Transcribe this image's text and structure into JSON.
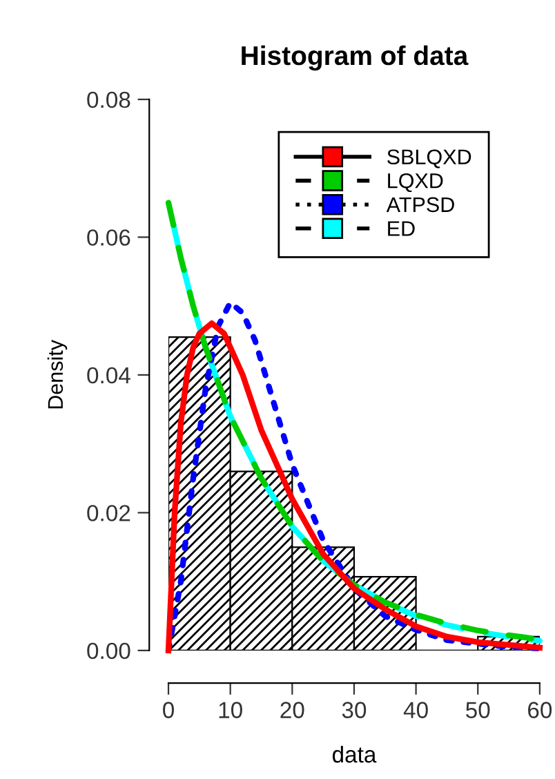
{
  "chart_data": {
    "type": "histogram",
    "title": "Histogram of data",
    "xlabel": "data",
    "ylabel": "Density",
    "bins": [
      0,
      10,
      20,
      30,
      40,
      50,
      60
    ],
    "values": [
      0.0455,
      0.026,
      0.015,
      0.0107,
      0,
      0.002
    ],
    "xlim": [
      0,
      60
    ],
    "ylim": [
      0,
      0.08
    ],
    "xticks": [
      0,
      10,
      20,
      30,
      40,
      50,
      60
    ],
    "yticks": [
      {
        "value": 0,
        "label": "0.00"
      },
      0.02,
      0.04,
      0.06,
      0.08
    ],
    "grid": false,
    "legend": "top",
    "series": [
      {
        "name": "SBLQXD",
        "type": "line",
        "color": "#ff0000",
        "line_style": "solid",
        "x": [
          0,
          1,
          2,
          3,
          4,
          5,
          7,
          9,
          12,
          15,
          18,
          20,
          25,
          30,
          35,
          40,
          45,
          50,
          55,
          60
        ],
        "values": [
          0,
          0.02,
          0.033,
          0.04,
          0.044,
          0.046,
          0.0475,
          0.046,
          0.04,
          0.032,
          0.026,
          0.022,
          0.014,
          0.009,
          0.006,
          0.0035,
          0.002,
          0.0012,
          0.0008,
          0.0004
        ]
      },
      {
        "name": "LQXD",
        "type": "line",
        "color": "#00cc00",
        "line_style": "dashed",
        "x": [
          0,
          2,
          4,
          6,
          8,
          10,
          15,
          20,
          25,
          30,
          35,
          40,
          45,
          50,
          55,
          60
        ],
        "values": [
          0.065,
          0.057,
          0.05,
          0.044,
          0.039,
          0.034,
          0.025,
          0.018,
          0.013,
          0.0095,
          0.007,
          0.0052,
          0.0039,
          0.0029,
          0.0022,
          0.0016
        ]
      },
      {
        "name": "ATPSD",
        "type": "line",
        "color": "#0000ff",
        "line_style": "dotted",
        "x": [
          0,
          2,
          4,
          6,
          8,
          10,
          12,
          14,
          16,
          18,
          20,
          25,
          30,
          35,
          40,
          45,
          50,
          55,
          60
        ],
        "values": [
          0,
          0.01,
          0.025,
          0.038,
          0.047,
          0.0505,
          0.049,
          0.045,
          0.039,
          0.033,
          0.027,
          0.016,
          0.009,
          0.005,
          0.003,
          0.0015,
          0.001,
          0.0005,
          0.0003
        ]
      },
      {
        "name": "ED",
        "type": "line",
        "color": "#00ffff",
        "line_style": "dashed",
        "x": [
          0,
          2,
          4,
          6,
          8,
          10,
          15,
          20,
          25,
          30,
          35,
          40,
          45,
          50,
          55,
          60
        ],
        "values": [
          0.065,
          0.057,
          0.05,
          0.044,
          0.039,
          0.034,
          0.025,
          0.018,
          0.013,
          0.0095,
          0.007,
          0.005,
          0.0037,
          0.0027,
          0.002,
          0.0014
        ]
      }
    ]
  }
}
